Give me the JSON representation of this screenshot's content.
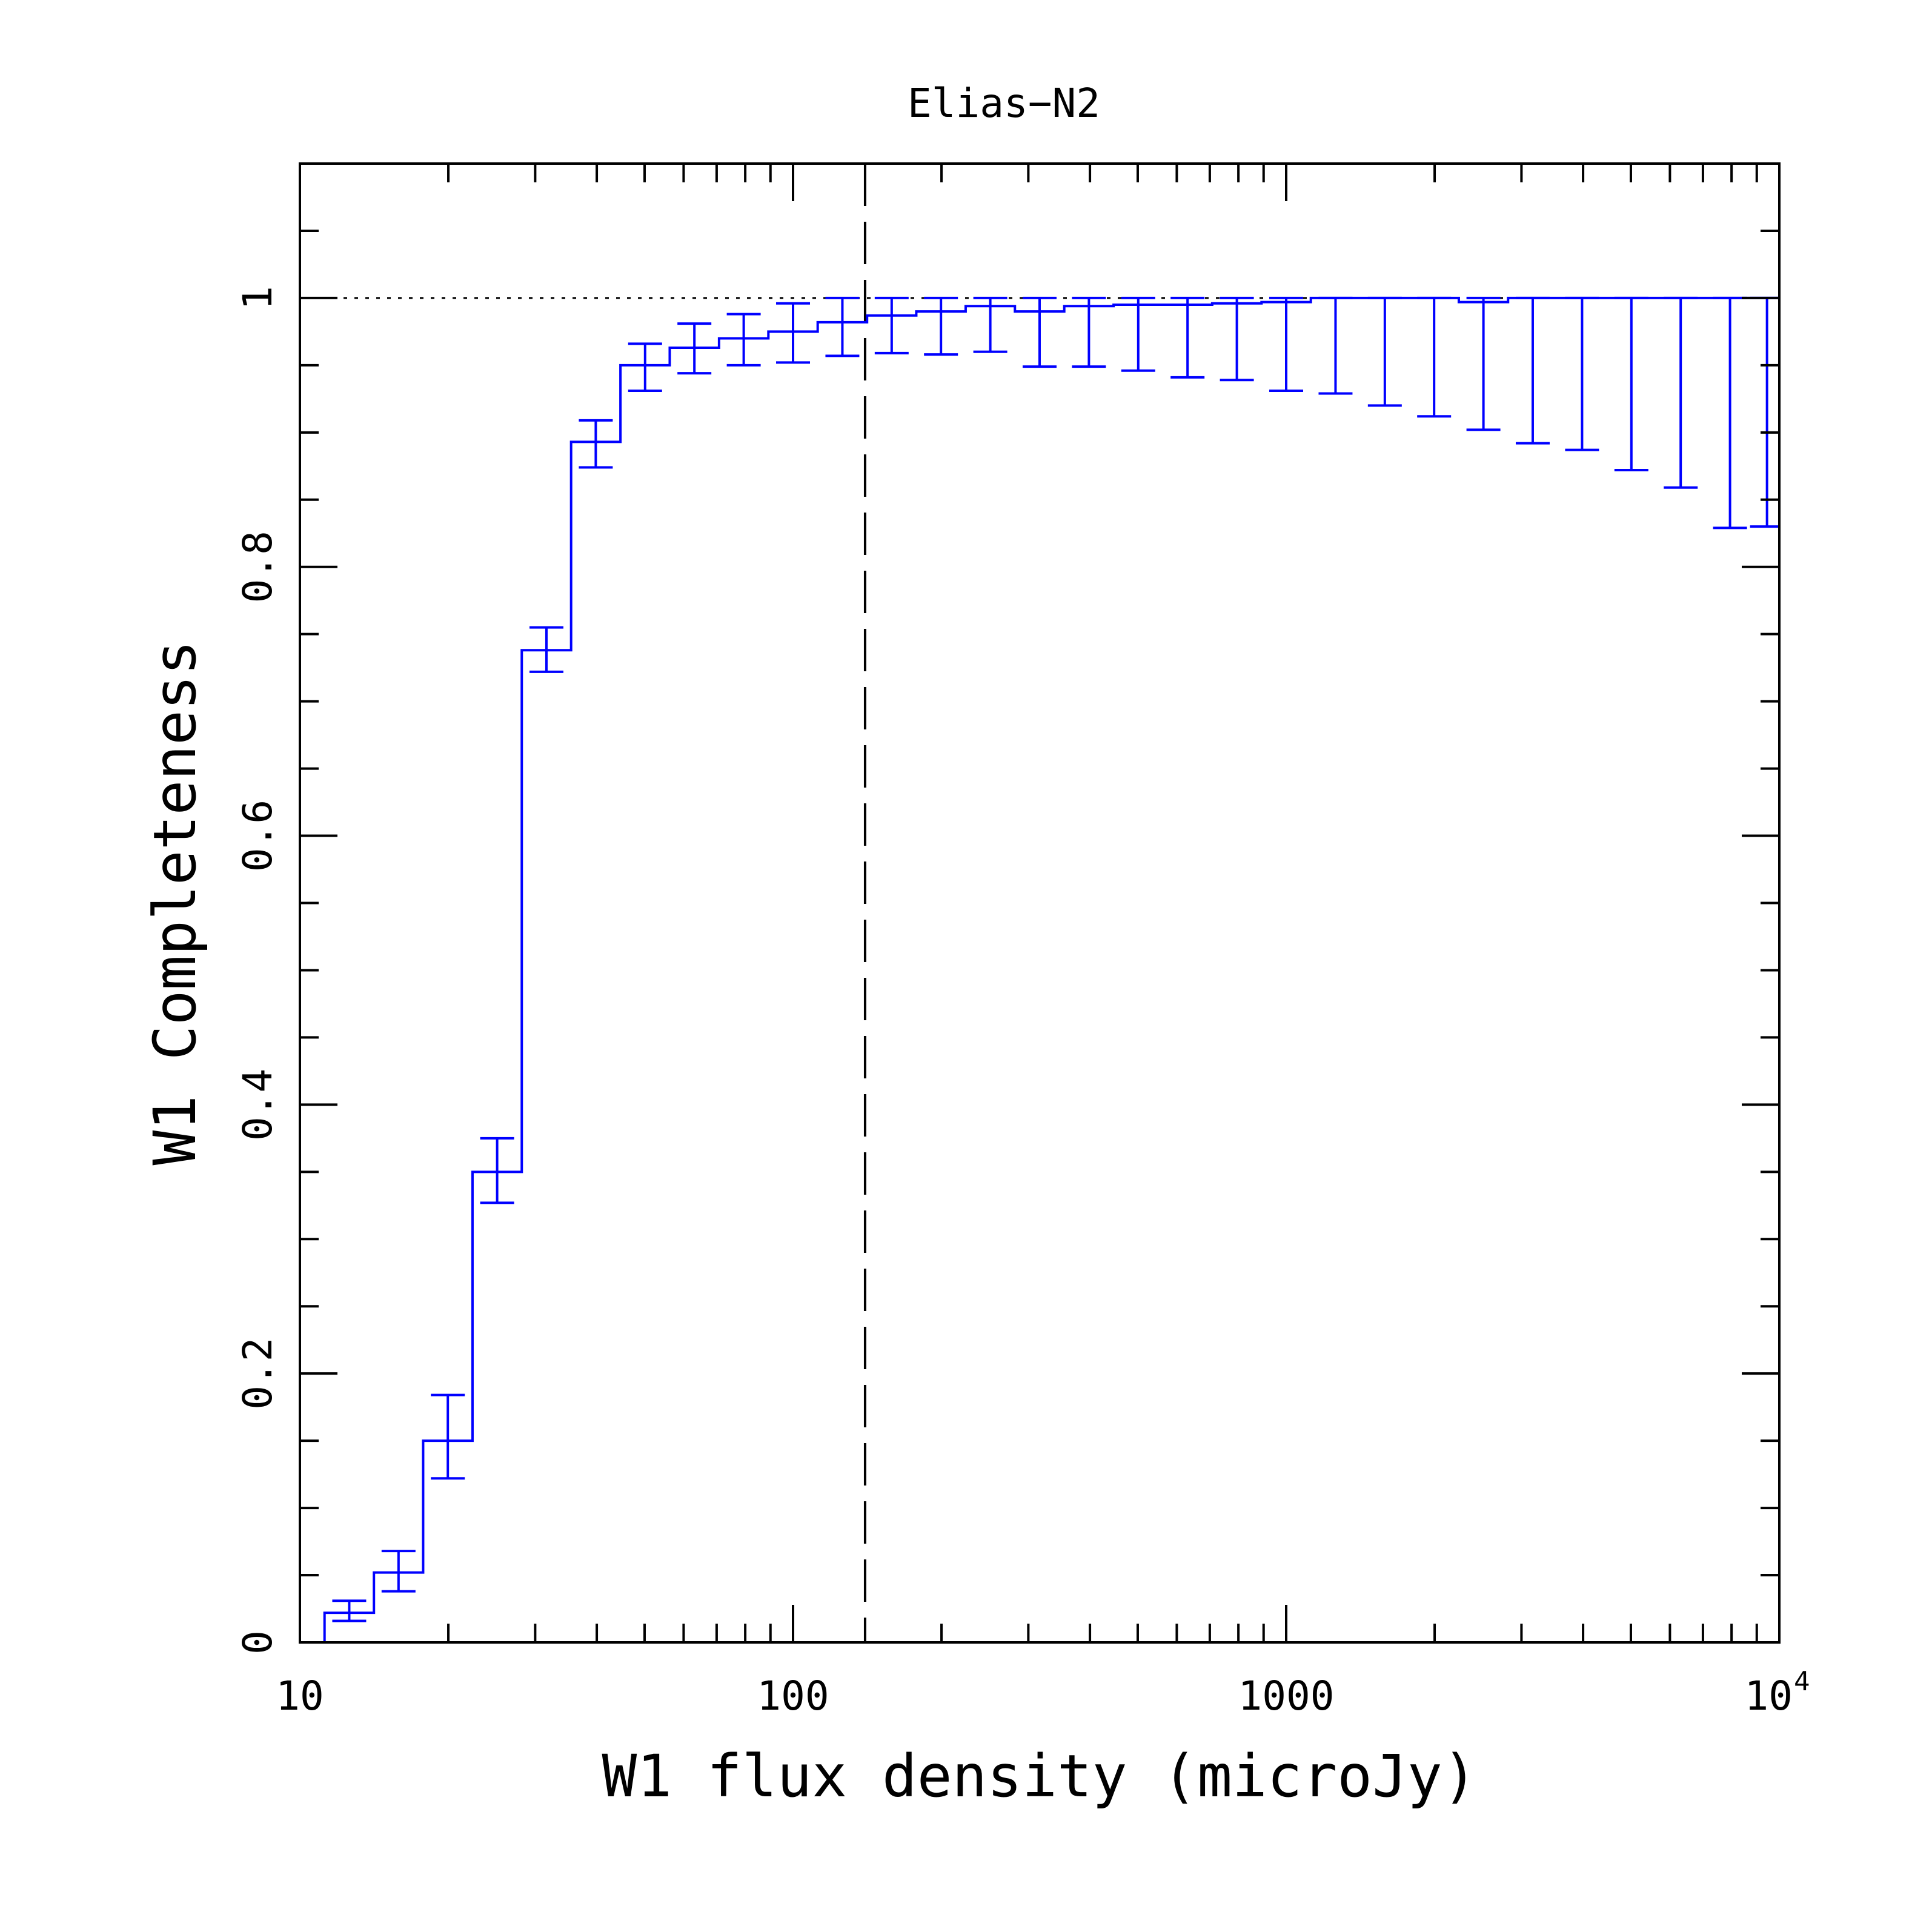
{
  "chart_data": {
    "type": "line",
    "title": "Elias−N2",
    "xlabel": "W1 flux density (microJy)",
    "ylabel": "W1 Completeness",
    "x_scale": "log",
    "xlim": [
      10,
      10000
    ],
    "ylim": [
      0,
      1.1
    ],
    "x_ticks": [
      {
        "value": 10,
        "label": "10"
      },
      {
        "value": 100,
        "label": "100"
      },
      {
        "value": 1000,
        "label": "1000"
      },
      {
        "value": 10000,
        "label": "10",
        "sup": "4"
      }
    ],
    "y_ticks": [
      {
        "value": 0,
        "label": "0"
      },
      {
        "value": 0.2,
        "label": "0.2"
      },
      {
        "value": 0.4,
        "label": "0.4"
      },
      {
        "value": 0.6,
        "label": "0.6"
      },
      {
        "value": 0.8,
        "label": "0.8"
      },
      {
        "value": 1,
        "label": "1"
      }
    ],
    "reference_lines": {
      "horizontal_dotted_y": 1.0,
      "vertical_dashed_x": 140
    },
    "series": [
      {
        "style": "step histogram with error bars",
        "color": "#0000ff",
        "bin_edges": [
          11.22,
          14.13,
          17.78,
          22.39,
          28.18,
          35.48,
          44.67,
          56.23,
          70.79,
          89.13,
          112.2,
          141.3,
          177.8,
          223.9,
          281.8,
          354.8,
          446.7,
          562.3,
          707.9,
          891.3,
          1122,
          1413,
          1778,
          2239,
          2818,
          3548,
          4467,
          5623,
          7079,
          8913,
          10000
        ],
        "values": [
          0.022,
          0.052,
          0.15,
          0.35,
          0.738,
          0.893,
          0.95,
          0.963,
          0.97,
          0.975,
          0.982,
          0.987,
          0.99,
          0.994,
          0.99,
          0.994,
          0.995,
          0.995,
          0.996,
          0.997,
          1.0,
          1.0,
          1.0,
          0.997,
          1.0,
          1.0,
          1.0,
          1.0,
          1.0,
          1.0
        ],
        "err_low": [
          0.016,
          0.038,
          0.122,
          0.327,
          0.722,
          0.874,
          0.931,
          0.944,
          0.95,
          0.952,
          0.957,
          0.959,
          0.958,
          0.96,
          0.949,
          0.949,
          0.946,
          0.941,
          0.939,
          0.931,
          0.929,
          0.92,
          0.912,
          0.902,
          0.892,
          0.887,
          0.872,
          0.859,
          0.829,
          0.83
        ],
        "err_high": [
          0.031,
          0.068,
          0.184,
          0.375,
          0.755,
          0.909,
          0.966,
          0.981,
          0.988,
          0.996,
          1.0,
          1.0,
          1.0,
          1.0,
          1.0,
          1.0,
          1.0,
          1.0,
          1.0,
          1.0,
          1.0,
          1.0,
          1.0,
          1.0,
          1.0,
          1.0,
          1.0,
          1.0,
          1.0,
          1.0
        ]
      }
    ]
  }
}
